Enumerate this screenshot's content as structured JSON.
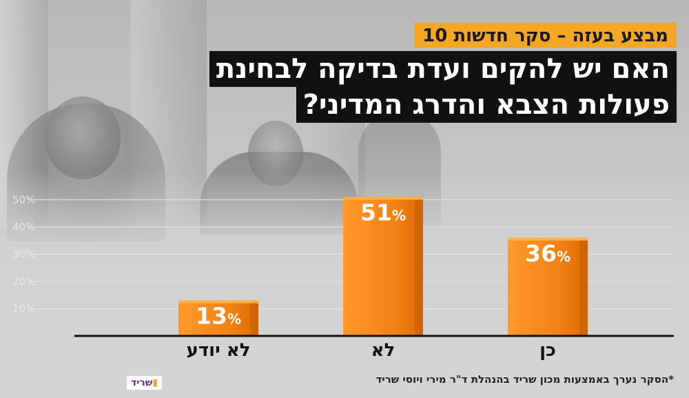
{
  "headline": "מבצע בעזה – סקר חדשות 10",
  "question_lines": [
    "האם יש להקים ועדת בדיקה לבחינת",
    "פעולות הצבא והדרג המדיני?"
  ],
  "footnote": "*הסקר נערך באמצעות מכון שריד בהנהלת ד\"ר מירי ויוסי שריד",
  "logo_text": "שריד",
  "colors": {
    "bar": "#f28c1e",
    "bar_light": "#ffb040",
    "headline_bg": "#f5a623",
    "question_bg": "#111111"
  },
  "chart_data": {
    "type": "bar",
    "categories": [
      "לא יודע",
      "לא",
      "כן"
    ],
    "values": [
      13,
      51,
      36
    ],
    "value_labels": [
      "13%",
      "51%",
      "36%"
    ],
    "yticks": [
      "10%",
      "20%",
      "30%",
      "40%",
      "50%"
    ],
    "ylim": [
      0,
      55
    ],
    "grid": true,
    "unit": "%"
  }
}
